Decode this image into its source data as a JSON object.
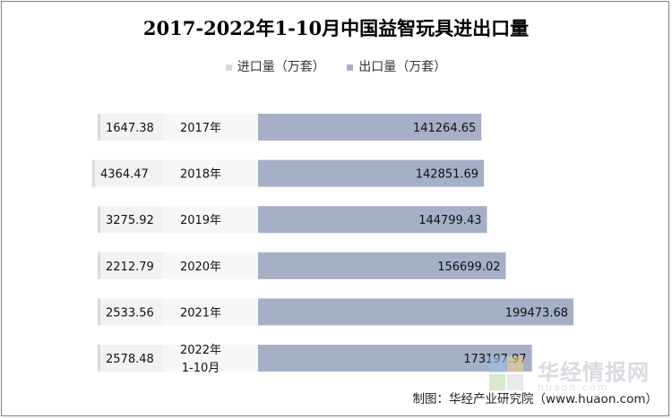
{
  "title": "2017-2022年1-10月中国益智玩具进出口量",
  "credit": "制图：华经产业研究院（www.huaon.com）",
  "watermark": {
    "name": "华经情报网",
    "url": "huaon.com"
  },
  "colors": {
    "import": "#f2f2f2",
    "export": "#a5b0c7",
    "legend_import": "#d9d9d9"
  },
  "chart_data": {
    "type": "bar",
    "orientation": "horizontal",
    "categories": [
      "2017年",
      "2018年",
      "2019年",
      "2020年",
      "2021年",
      "2022年\n1-10月"
    ],
    "series": [
      {
        "name": "进口量（万套）",
        "values": [
          1647.38,
          4364.47,
          3275.92,
          2212.79,
          2533.56,
          2578.48
        ]
      },
      {
        "name": "出口量（万套）",
        "values": [
          141264.65,
          142851.69,
          144799.43,
          156699.02,
          199473.68,
          173197.97
        ]
      }
    ],
    "value_labels": {
      "import": [
        "1647.38",
        "4364.47",
        "3275.92",
        "2212.79",
        "2533.56",
        "2578.48"
      ],
      "export": [
        "141264.65",
        "142851.69",
        "144799.43",
        "156699.02",
        "199473.68",
        "173197.97"
      ]
    },
    "legend_position": "top",
    "grid": false
  }
}
